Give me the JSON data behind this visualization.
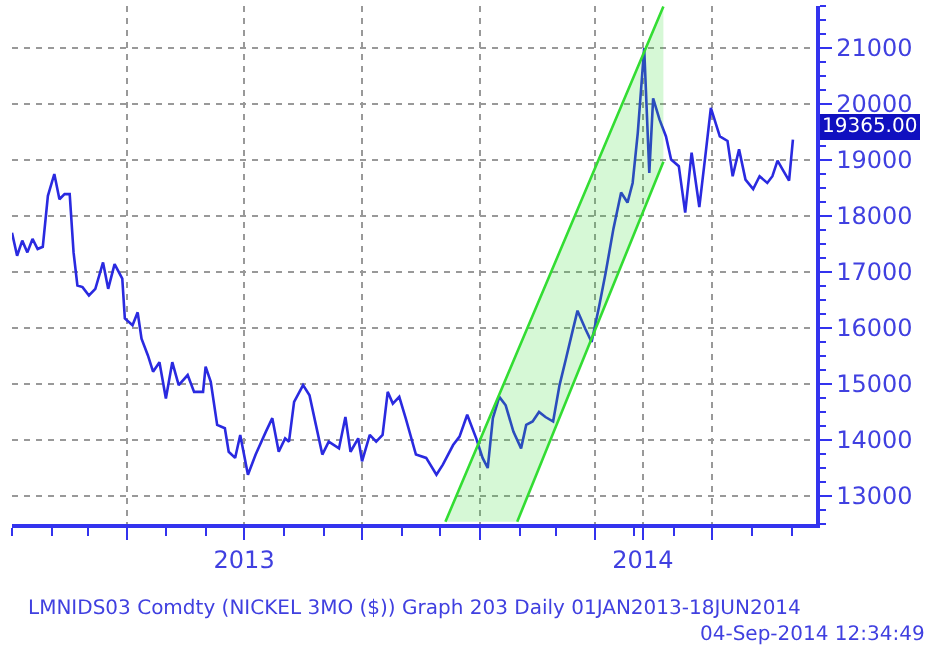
{
  "chart_data": {
    "type": "line",
    "xlim": [
      "2013-01-01",
      "2014-09-20"
    ],
    "xticks": [
      {
        "value": "2013-04-01",
        "label": null
      },
      {
        "value": "2013-07-01",
        "label": "2013"
      },
      {
        "value": "2013-10-01",
        "label": null
      },
      {
        "value": "2014-01-01",
        "label": null
      },
      {
        "value": "2014-04-01",
        "label": null
      },
      {
        "value": "2014-05-08",
        "label": "2014"
      },
      {
        "value": "2014-07-01",
        "label": null
      }
    ],
    "ylim": [
      12500,
      21750
    ],
    "yticks": [
      13000,
      14000,
      15000,
      16000,
      17000,
      18000,
      19000,
      20000,
      21000
    ],
    "grid": true,
    "marker": "none",
    "line_style": "solid",
    "series": [
      {
        "color": "#2a2ae0",
        "x": [
          "2013-01-01",
          "2013-01-05",
          "2013-01-09",
          "2013-01-13",
          "2013-01-17",
          "2013-01-21",
          "2013-01-25",
          "2013-01-29",
          "2013-02-03",
          "2013-02-07",
          "2013-02-11",
          "2013-02-15",
          "2013-02-18",
          "2013-02-21",
          "2013-02-25",
          "2013-03-02",
          "2013-03-07",
          "2013-03-13",
          "2013-03-17",
          "2013-03-22",
          "2013-03-28",
          "2013-03-30",
          "2013-04-05",
          "2013-04-09",
          "2013-04-12",
          "2013-04-17",
          "2013-04-21",
          "2013-04-26",
          "2013-05-01",
          "2013-05-06",
          "2013-05-11",
          "2013-05-18",
          "2013-05-23",
          "2013-05-30",
          "2013-06-01",
          "2013-06-05",
          "2013-06-10",
          "2013-06-16",
          "2013-06-19",
          "2013-06-24",
          "2013-06-28",
          "2013-07-04",
          "2013-07-10",
          "2013-07-18",
          "2013-07-23",
          "2013-07-28",
          "2013-08-02",
          "2013-08-05",
          "2013-08-09",
          "2013-08-16",
          "2013-08-21",
          "2013-08-26",
          "2013-08-31",
          "2013-09-05",
          "2013-09-13",
          "2013-09-18",
          "2013-09-22",
          "2013-09-28",
          "2013-10-01",
          "2013-10-07",
          "2013-10-12",
          "2013-10-17",
          "2013-10-21",
          "2013-10-25",
          "2013-10-30",
          "2013-11-04",
          "2013-11-12",
          "2013-11-20",
          "2013-11-28",
          "2013-12-03",
          "2013-12-11",
          "2013-12-16",
          "2013-12-22",
          "2013-12-29",
          "2014-01-03",
          "2014-01-07",
          "2014-01-11",
          "2014-01-16",
          "2014-01-21",
          "2014-01-27",
          "2014-02-02",
          "2014-02-06",
          "2014-02-11",
          "2014-02-16",
          "2014-02-21",
          "2014-02-27",
          "2014-03-04",
          "2014-03-09",
          "2014-03-14",
          "2014-03-18",
          "2014-03-24",
          "2014-03-29",
          "2014-04-04",
          "2014-04-09",
          "2014-04-15",
          "2014-04-21",
          "2014-04-26",
          "2014-04-30",
          "2014-05-04",
          "2014-05-09",
          "2014-05-13",
          "2014-05-16",
          "2014-05-21",
          "2014-05-26",
          "2014-05-30",
          "2014-06-05",
          "2014-06-10",
          "2014-06-15",
          "2014-06-21",
          "2014-06-26",
          "2014-06-30",
          "2014-07-07",
          "2014-07-13",
          "2014-07-17",
          "2014-07-22",
          "2014-07-27",
          "2014-08-02",
          "2014-08-07",
          "2014-08-13",
          "2014-08-17",
          "2014-08-21",
          "2014-08-25",
          "2014-08-30",
          "2014-09-02"
        ],
        "values": [
          17700,
          17290,
          17560,
          17350,
          17590,
          17410,
          17450,
          18360,
          18750,
          18300,
          18390,
          18390,
          17350,
          16760,
          16730,
          16580,
          16700,
          17170,
          16700,
          17140,
          16880,
          16170,
          16050,
          16280,
          15810,
          15510,
          15220,
          15390,
          14740,
          15390,
          14980,
          15160,
          14860,
          14860,
          15310,
          15040,
          14270,
          14210,
          13790,
          13680,
          14090,
          13380,
          13740,
          14150,
          14390,
          13790,
          14030,
          13970,
          14680,
          14980,
          14800,
          14270,
          13740,
          13970,
          13850,
          14410,
          13790,
          14030,
          13620,
          14090,
          13970,
          14090,
          14860,
          14650,
          14770,
          14390,
          13740,
          13680,
          13380,
          13560,
          13910,
          14060,
          14450,
          14030,
          13680,
          13500,
          14390,
          14770,
          14620,
          14150,
          13850,
          14270,
          14330,
          14500,
          14410,
          14330,
          14980,
          15450,
          15930,
          16310,
          15990,
          15750,
          16400,
          16990,
          17770,
          18420,
          18240,
          18590,
          19480,
          21000,
          18770,
          20100,
          19720,
          19420,
          19010,
          18890,
          18060,
          19130,
          18160,
          19130,
          19930,
          19420,
          19340,
          18710,
          19190,
          18650,
          18480,
          18710,
          18590,
          18710,
          18990,
          18830,
          18630,
          19365
        ]
      },
      {
        "color": "#33dd33",
        "x": [
          "2014-01-30",
          "2014-05-24"
        ],
        "values": [
          12540,
          18970
        ]
      },
      {
        "color": "#33dd33",
        "x": [
          "2013-12-05",
          "2014-01-30",
          "2014-05-24"
        ],
        "values": [
          12540,
          15570,
          21740
        ],
        "lower": [
          12540,
          12540,
          18970
        ],
        "upper": [
          12540,
          15570,
          21740
        ]
      }
    ],
    "annotations": [
      {
        "text": "19365.00",
        "x": "2014-09-02",
        "y": 19365
      },
      "LMNIDS03 Comdty (NICKEL 3MO ($)) Graph 203 Daily 01JAN2013-18JUN2014",
      "04-Sep-2014 12:34:49"
    ]
  }
}
